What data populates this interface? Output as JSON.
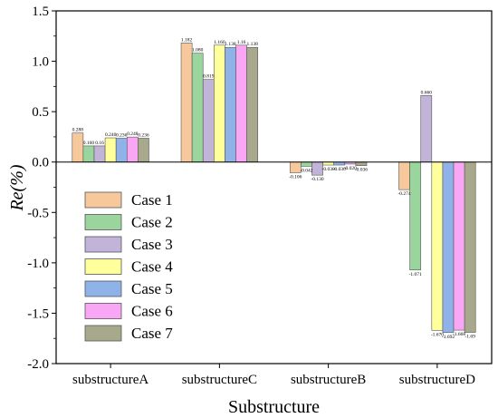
{
  "chart_data": {
    "type": "bar",
    "xlabel": "Substructure",
    "ylabel": "Re(%)",
    "ylim": [
      -2.0,
      1.5
    ],
    "yticks": [
      "1.5",
      "1.0",
      "0.5",
      "0.0",
      "-0.5",
      "-1.0",
      "-1.5",
      "-2.0"
    ],
    "categories": [
      "substructureA",
      "substructureC",
      "substructureB",
      "substructureD"
    ],
    "grid": false,
    "legend_position": "bottom-left",
    "series": [
      {
        "name": "Case 1",
        "color": "#f7c89b",
        "values": [
          0.288,
          1.182,
          -0.106,
          -0.274
        ],
        "labels": [
          "0.288",
          "1.182",
          "-0.106",
          "-0.274"
        ]
      },
      {
        "name": "Case 2",
        "color": "#99d59c",
        "values": [
          0.16,
          1.08,
          -0.042,
          -1.071
        ],
        "labels": [
          "0.160",
          "1.080",
          "-0.042",
          "-1.071"
        ]
      },
      {
        "name": "Case 3",
        "color": "#c2b3d8",
        "values": [
          0.16,
          0.819,
          -0.13,
          0.66
        ],
        "labels": [
          "0.16",
          "0.819",
          "-0.130",
          "0.660"
        ]
      },
      {
        "name": "Case 4",
        "color": "#ffff9c",
        "values": [
          0.24,
          1.16,
          -0.03,
          -1.67
        ],
        "labels": [
          "0.240",
          "1.160",
          "-0.030",
          "-1.670"
        ]
      },
      {
        "name": "Case 5",
        "color": "#8fb3e8",
        "values": [
          0.236,
          1.138,
          -0.03,
          -1.692
        ],
        "labels": [
          "0.236",
          "1.138",
          "-0.030",
          "-1.692"
        ]
      },
      {
        "name": "Case 6",
        "color": "#f9a6f4",
        "values": [
          0.248,
          1.16,
          -0.02,
          -1.668
        ],
        "labels": [
          "0.248",
          "1.16",
          "-0.020",
          "-1.668"
        ]
      },
      {
        "name": "Case 7",
        "color": "#a8a98c",
        "values": [
          0.236,
          1.138,
          -0.036,
          -1.69
        ],
        "labels": [
          "0.236",
          "1.138",
          "-0.036",
          "-1.69"
        ]
      }
    ]
  }
}
